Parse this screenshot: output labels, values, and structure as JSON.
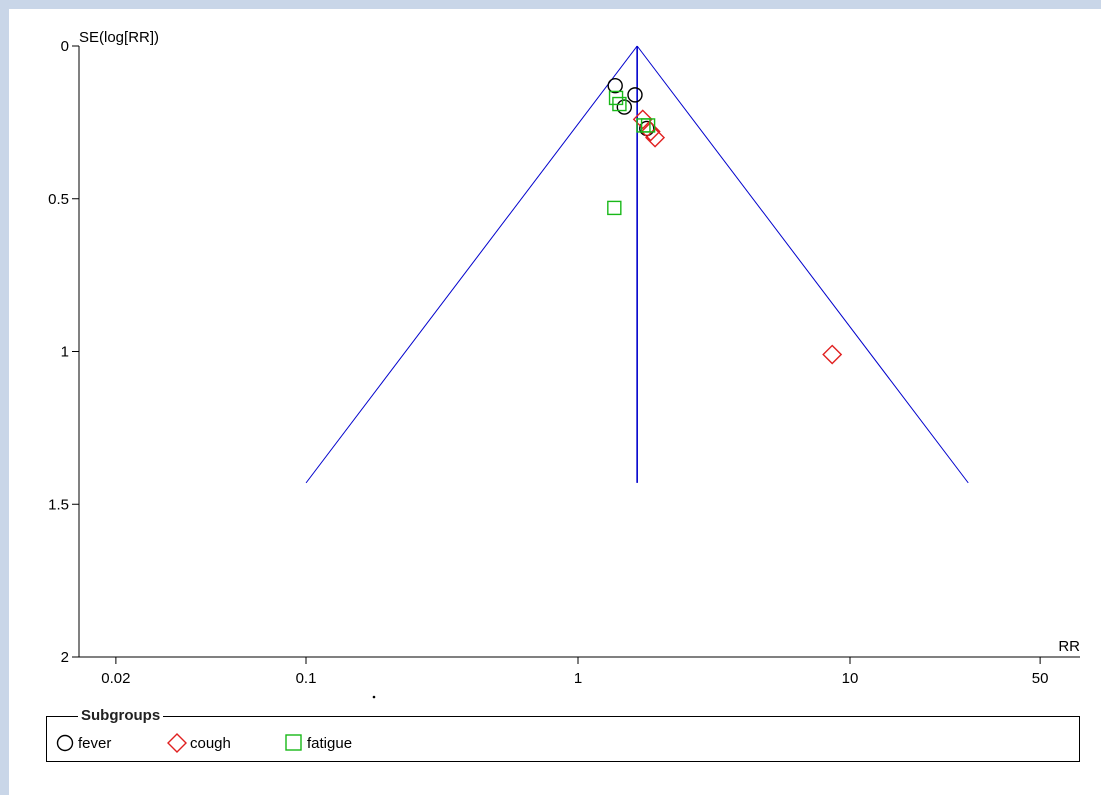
{
  "chart_data": {
    "type": "scatter",
    "subtype": "funnel-plot",
    "x_axis": {
      "label": "RR",
      "scale": "log",
      "ticks": [
        0.02,
        0.1,
        1,
        10,
        50
      ],
      "tick_labels": [
        "0.02",
        "0.1",
        "1",
        "10",
        "50"
      ],
      "range": [
        0.015,
        70
      ]
    },
    "y_axis": {
      "label": "SE(log[RR])",
      "reversed": true,
      "ticks": [
        0,
        0.5,
        1,
        1.5,
        2
      ],
      "tick_labels": [
        "0",
        "0.5",
        "1",
        "1.5",
        "2"
      ],
      "range": [
        0,
        2
      ]
    },
    "pooled_rr": 1.65,
    "funnel_max_se": 1.43,
    "grid": false,
    "legend": {
      "title": "Subgroups",
      "placement": "bottom",
      "entries": [
        {
          "label": "fever",
          "marker": "circle",
          "color": "#000000"
        },
        {
          "label": "cough",
          "marker": "diamond",
          "color": "#e02020"
        },
        {
          "label": "fatigue",
          "marker": "square",
          "color": "#18b818"
        }
      ]
    },
    "series": [
      {
        "name": "fever",
        "marker": "circle",
        "color": "#000000",
        "points": [
          {
            "rr": 1.37,
            "se": 0.13
          },
          {
            "rr": 1.62,
            "se": 0.16
          },
          {
            "rr": 1.48,
            "se": 0.2
          },
          {
            "rr": 1.79,
            "se": 0.27
          }
        ]
      },
      {
        "name": "cough",
        "marker": "diamond",
        "color": "#e02020",
        "points": [
          {
            "rr": 1.73,
            "se": 0.24
          },
          {
            "rr": 1.85,
            "se": 0.28
          },
          {
            "rr": 1.92,
            "se": 0.3
          },
          {
            "rr": 8.6,
            "se": 1.01
          }
        ]
      },
      {
        "name": "fatigue",
        "marker": "square",
        "color": "#18b818",
        "points": [
          {
            "rr": 1.38,
            "se": 0.17
          },
          {
            "rr": 1.42,
            "se": 0.19
          },
          {
            "rr": 1.74,
            "se": 0.26
          },
          {
            "rr": 1.81,
            "se": 0.26
          },
          {
            "rr": 1.36,
            "se": 0.53
          }
        ]
      }
    ]
  }
}
